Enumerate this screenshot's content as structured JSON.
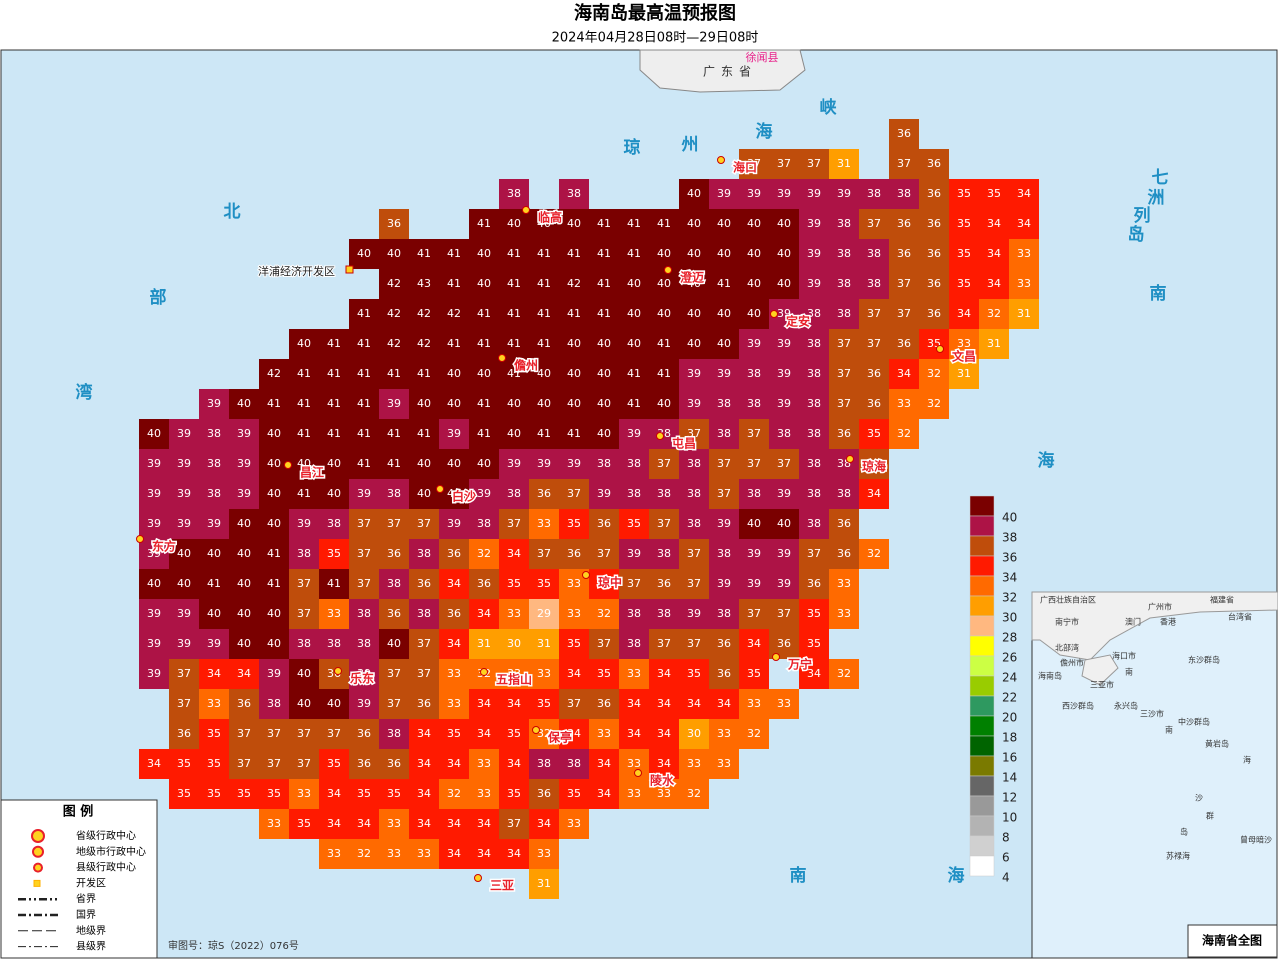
{
  "header": {
    "title": "海南岛最高温预报图",
    "subtitle": "2024年04月28日08时—29日08时"
  },
  "grid": {
    "rows": [
      [
        null,
        null,
        null,
        null,
        null,
        null,
        null,
        null,
        null,
        null,
        null,
        null,
        null,
        null,
        null,
        null,
        null,
        null,
        null,
        null,
        null,
        null,
        null,
        null,
        null,
        36,
        null,
        null,
        null,
        null
      ],
      [
        null,
        null,
        null,
        null,
        null,
        null,
        null,
        null,
        null,
        null,
        null,
        null,
        null,
        null,
        null,
        null,
        null,
        null,
        null,
        null,
        37,
        37,
        37,
        31,
        null,
        37,
        36,
        null,
        null,
        null
      ],
      [
        null,
        null,
        null,
        null,
        null,
        null,
        null,
        null,
        null,
        null,
        null,
        null,
        38,
        null,
        38,
        null,
        null,
        null,
        40,
        39,
        39,
        39,
        39,
        39,
        38,
        38,
        36,
        35,
        35,
        34
      ],
      [
        null,
        null,
        null,
        null,
        null,
        null,
        null,
        null,
        36,
        null,
        null,
        41,
        40,
        40,
        40,
        41,
        41,
        41,
        40,
        40,
        40,
        40,
        39,
        38,
        37,
        36,
        36,
        35,
        34,
        34
      ],
      [
        null,
        null,
        null,
        null,
        null,
        null,
        null,
        40,
        40,
        41,
        41,
        40,
        41,
        41,
        41,
        41,
        41,
        40,
        40,
        40,
        40,
        40,
        39,
        38,
        38,
        36,
        36,
        35,
        34,
        33
      ],
      [
        null,
        null,
        null,
        null,
        null,
        null,
        null,
        null,
        42,
        43,
        41,
        40,
        41,
        41,
        42,
        41,
        40,
        40,
        40,
        41,
        40,
        40,
        39,
        38,
        38,
        37,
        36,
        35,
        34,
        33
      ],
      [
        null,
        null,
        null,
        null,
        null,
        null,
        null,
        41,
        42,
        42,
        42,
        41,
        41,
        41,
        41,
        41,
        40,
        40,
        40,
        40,
        40,
        39,
        38,
        38,
        37,
        37,
        36,
        34,
        32,
        31
      ],
      [
        null,
        null,
        null,
        null,
        null,
        40,
        41,
        41,
        42,
        42,
        41,
        41,
        41,
        41,
        40,
        40,
        40,
        41,
        40,
        40,
        39,
        39,
        38,
        37,
        37,
        36,
        35,
        33,
        31,
        null
      ],
      [
        null,
        null,
        null,
        null,
        42,
        41,
        41,
        41,
        41,
        41,
        40,
        40,
        41,
        40,
        40,
        40,
        41,
        41,
        39,
        39,
        38,
        39,
        38,
        37,
        36,
        34,
        32,
        31,
        null,
        null
      ],
      [
        null,
        null,
        39,
        40,
        41,
        41,
        41,
        41,
        39,
        40,
        40,
        41,
        40,
        40,
        40,
        40,
        41,
        40,
        39,
        38,
        38,
        39,
        38,
        37,
        36,
        33,
        32,
        null,
        null,
        null
      ],
      [
        40,
        39,
        38,
        39,
        40,
        41,
        41,
        41,
        41,
        41,
        39,
        41,
        40,
        41,
        41,
        40,
        39,
        38,
        37,
        38,
        37,
        38,
        38,
        36,
        35,
        32,
        null,
        null,
        null,
        null
      ],
      [
        39,
        39,
        38,
        39,
        40,
        40,
        40,
        41,
        41,
        40,
        40,
        40,
        39,
        39,
        39,
        38,
        38,
        37,
        38,
        37,
        37,
        37,
        38,
        38,
        36,
        null,
        null,
        null,
        null,
        null
      ],
      [
        39,
        39,
        38,
        39,
        40,
        41,
        40,
        39,
        38,
        40,
        40,
        39,
        38,
        36,
        37,
        39,
        38,
        38,
        38,
        37,
        38,
        39,
        38,
        38,
        34,
        null,
        null,
        null,
        null,
        null
      ],
      [
        39,
        39,
        39,
        40,
        40,
        39,
        38,
        37,
        37,
        37,
        39,
        38,
        37,
        33,
        35,
        36,
        35,
        37,
        38,
        39,
        40,
        40,
        38,
        36,
        null,
        null,
        null,
        null,
        null,
        null
      ],
      [
        39,
        40,
        40,
        40,
        41,
        38,
        35,
        37,
        36,
        38,
        36,
        32,
        34,
        37,
        36,
        37,
        39,
        38,
        37,
        38,
        39,
        39,
        37,
        36,
        32,
        null,
        null,
        null,
        null,
        null
      ],
      [
        40,
        40,
        41,
        40,
        41,
        37,
        41,
        37,
        38,
        36,
        34,
        36,
        35,
        35,
        33,
        35,
        37,
        36,
        37,
        39,
        39,
        39,
        36,
        33,
        null,
        null,
        null,
        null,
        null,
        null
      ],
      [
        39,
        39,
        40,
        40,
        40,
        37,
        33,
        38,
        36,
        38,
        36,
        34,
        33,
        29,
        33,
        32,
        38,
        38,
        39,
        38,
        37,
        37,
        35,
        33,
        null,
        null,
        null,
        null,
        null,
        null
      ],
      [
        39,
        39,
        39,
        40,
        40,
        38,
        38,
        38,
        40,
        37,
        34,
        31,
        30,
        31,
        35,
        37,
        38,
        37,
        37,
        36,
        34,
        36,
        35,
        null,
        null,
        null,
        null,
        null,
        null,
        null
      ],
      [
        39,
        37,
        34,
        34,
        39,
        40,
        36,
        39,
        37,
        37,
        33,
        32,
        33,
        33,
        34,
        35,
        33,
        34,
        35,
        36,
        35,
        null,
        34,
        32,
        null,
        null,
        null,
        null,
        null,
        null
      ],
      [
        null,
        37,
        33,
        36,
        38,
        40,
        40,
        39,
        37,
        36,
        33,
        34,
        34,
        35,
        37,
        36,
        34,
        34,
        34,
        34,
        33,
        33,
        null,
        null,
        null,
        null,
        null,
        null,
        null,
        null
      ],
      [
        null,
        36,
        35,
        37,
        37,
        37,
        37,
        36,
        38,
        34,
        35,
        34,
        35,
        32,
        34,
        33,
        34,
        34,
        30,
        33,
        32,
        null,
        null,
        null,
        null,
        null,
        null,
        null,
        null,
        null
      ],
      [
        34,
        35,
        35,
        37,
        37,
        37,
        35,
        36,
        36,
        34,
        34,
        33,
        34,
        38,
        38,
        34,
        33,
        34,
        33,
        33,
        null,
        null,
        null,
        null,
        null,
        null,
        null,
        null,
        null,
        null
      ],
      [
        null,
        35,
        35,
        35,
        35,
        33,
        34,
        35,
        35,
        34,
        32,
        33,
        35,
        36,
        35,
        34,
        33,
        33,
        32,
        null,
        null,
        null,
        null,
        null,
        null,
        null,
        null,
        null,
        null,
        null
      ],
      [
        null,
        null,
        null,
        null,
        33,
        35,
        34,
        34,
        33,
        34,
        34,
        34,
        37,
        34,
        33,
        null,
        null,
        null,
        null,
        null,
        null,
        null,
        null,
        null,
        null,
        null,
        null,
        null,
        null,
        null
      ],
      [
        null,
        null,
        null,
        null,
        null,
        null,
        33,
        32,
        33,
        33,
        34,
        34,
        34,
        33,
        null,
        null,
        null,
        null,
        null,
        null,
        null,
        null,
        null,
        null,
        null,
        null,
        null,
        null,
        null,
        null
      ],
      [
        null,
        null,
        null,
        null,
        null,
        null,
        null,
        null,
        null,
        null,
        null,
        null,
        null,
        31,
        null,
        null,
        null,
        null,
        null,
        null,
        null,
        null,
        null,
        null,
        null,
        null,
        null,
        null,
        null,
        null
      ]
    ]
  },
  "color_scale": [
    {
      "value": 40,
      "color": "#7a0000"
    },
    {
      "value": 38,
      "color": "#ad1346"
    },
    {
      "value": 36,
      "color": "#bf4d0b"
    },
    {
      "value": 34,
      "color": "#ff1a00"
    },
    {
      "value": 32,
      "color": "#ff6a00"
    },
    {
      "value": 30,
      "color": "#ff9e00"
    },
    {
      "value": 28,
      "color": "#ffb880"
    },
    {
      "value": 26,
      "color": "#ffff00"
    },
    {
      "value": 24,
      "color": "#ccff44"
    },
    {
      "value": 22,
      "color": "#99cc00"
    },
    {
      "value": 20,
      "color": "#2e9960"
    },
    {
      "value": 18,
      "color": "#008000"
    },
    {
      "value": 16,
      "color": "#006400"
    },
    {
      "value": 14,
      "color": "#7a7a00"
    },
    {
      "value": 12,
      "color": "#666666"
    },
    {
      "value": 10,
      "color": "#999999"
    },
    {
      "value": 8,
      "color": "#b3b3b3"
    },
    {
      "value": 6,
      "color": "#d0d0d0"
    },
    {
      "value": 4,
      "color": "#ffffff"
    }
  ],
  "cities": [
    "海口",
    "临高",
    "澄迈",
    "定安",
    "文昌",
    "儋州",
    "屯昌",
    "琼海",
    "昌江",
    "白沙",
    "东方",
    "琼中",
    "万宁",
    "乐东",
    "五指山",
    "保亭",
    "陵水",
    "三亚"
  ],
  "development_zone": "洋浦经济开发区",
  "sea_labels": [
    "琼",
    "州",
    "海",
    "峡",
    "北",
    "部",
    "湾",
    "南",
    "海",
    "南",
    "海",
    "七",
    "洲",
    "列",
    "岛"
  ],
  "land_labels": [
    "广东省",
    "徐闻县"
  ],
  "legend": {
    "title": "图 例",
    "items": [
      "省级行政中心",
      "地级市行政中心",
      "县级行政中心",
      "开发区",
      "省界",
      "国界",
      "地级界",
      "县级界"
    ]
  },
  "approval": "审图号：琼S（2022）076号",
  "inset": {
    "title": "海南省全图",
    "labels": [
      "广西壮族自治区",
      "广州市",
      "福建省",
      "台湾省",
      "南宁市",
      "澳门",
      "香港",
      "北部湾",
      "海口市",
      "东沙群岛",
      "儋州市",
      "海南岛",
      "南",
      "三亚市",
      "西沙群岛",
      "三沙市",
      "永兴岛",
      "中沙群岛",
      "黄岩岛",
      "海",
      "南",
      "沙",
      "群",
      "岛",
      "苏禄海",
      "曾母暗沙"
    ]
  }
}
